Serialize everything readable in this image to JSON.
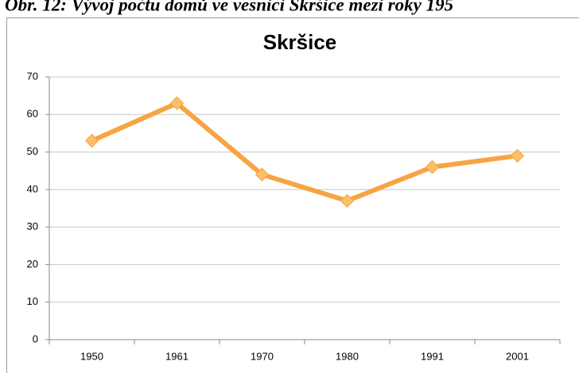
{
  "caption": "Obr. 12: Vývoj počtu domů ve vesnici Skršice mezi roky 195",
  "chart_data": {
    "type": "line",
    "title": "Skršice",
    "categories": [
      "1950",
      "1961",
      "1970",
      "1980",
      "1991",
      "2001"
    ],
    "values": [
      53,
      63,
      44,
      37,
      46,
      49
    ],
    "color": "#f7a444",
    "marker_color": "#fbbf6a",
    "ylim": [
      0,
      70
    ],
    "yticks": [
      0,
      10,
      20,
      30,
      40,
      50,
      60,
      70
    ],
    "grid": true
  }
}
